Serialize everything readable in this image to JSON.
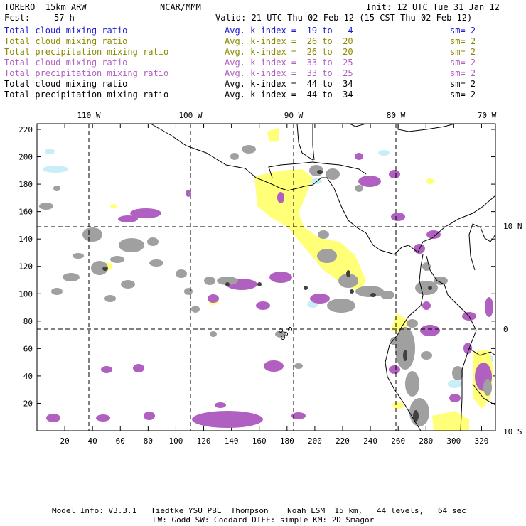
{
  "header": {
    "model": "TORERO  15km ARW",
    "org": "NCAR/MMM",
    "init": "Init: 12 UTC Tue 31 Jan 12",
    "fcst_label": "Fcst:",
    "fcst_value": "57 h",
    "valid": "Valid: 21 UTC Thu 02 Feb 12 (15 CST Thu 02 Feb 12)"
  },
  "legend": [
    {
      "field": "Total cloud mixing ratio",
      "kidx": "Avg. k-index =  19 to   4",
      "sm": "sm= 2",
      "color": "#1a1ad0"
    },
    {
      "field": "Total cloud mixing ratio",
      "kidx": "Avg. k-index =  26 to  20",
      "sm": "sm= 2",
      "color": "#8a8a00"
    },
    {
      "field": "Total precipitation mixing ratio",
      "kidx": "Avg. k-index =  26 to  20",
      "sm": "sm= 2",
      "color": "#8a8a00"
    },
    {
      "field": "Total cloud mixing ratio",
      "kidx": "Avg. k-index =  33 to  25",
      "sm": "sm= 2",
      "color": "#b060c0"
    },
    {
      "field": "Total precipitation mixing ratio",
      "kidx": "Avg. k-index =  33 to  25",
      "sm": "sm= 2",
      "color": "#b060c0"
    },
    {
      "field": "Total cloud mixing ratio",
      "kidx": "Avg. k-index =  44 to  34",
      "sm": "sm= 2",
      "color": "#000000"
    },
    {
      "field": "Total precipitation mixing ratio",
      "kidx": "Avg. k-index =  44 to  34",
      "sm": "sm= 2",
      "color": "#000000"
    }
  ],
  "map": {
    "lon_labels": [
      "110 W",
      "100 W",
      "90 W",
      "80 W",
      "70 W"
    ],
    "lat_labels": [
      "10 N",
      "0",
      "10 S"
    ],
    "x_ticks": [
      "20",
      "40",
      "60",
      "80",
      "100",
      "120",
      "140",
      "160",
      "180",
      "200",
      "220",
      "240",
      "260",
      "280",
      "300",
      "320"
    ],
    "y_ticks": [
      "20",
      "40",
      "60",
      "80",
      "100",
      "120",
      "140",
      "160",
      "180",
      "200",
      "220"
    ],
    "colors": {
      "cyan": "#c8eef8",
      "yellow": "#ffff78",
      "purple": "#b060c0",
      "gray": "#a0a0a0",
      "dark": "#404040",
      "coast": "#000000"
    }
  },
  "footer": {
    "line1": "Model Info: V3.3.1   Tiedtke YSU PBL  Thompson    Noah LSM  15 km,   44 levels,   64 sec",
    "line2": "LW: Godd SW: Goddard DIFF: simple KM: 2D Smagor"
  }
}
